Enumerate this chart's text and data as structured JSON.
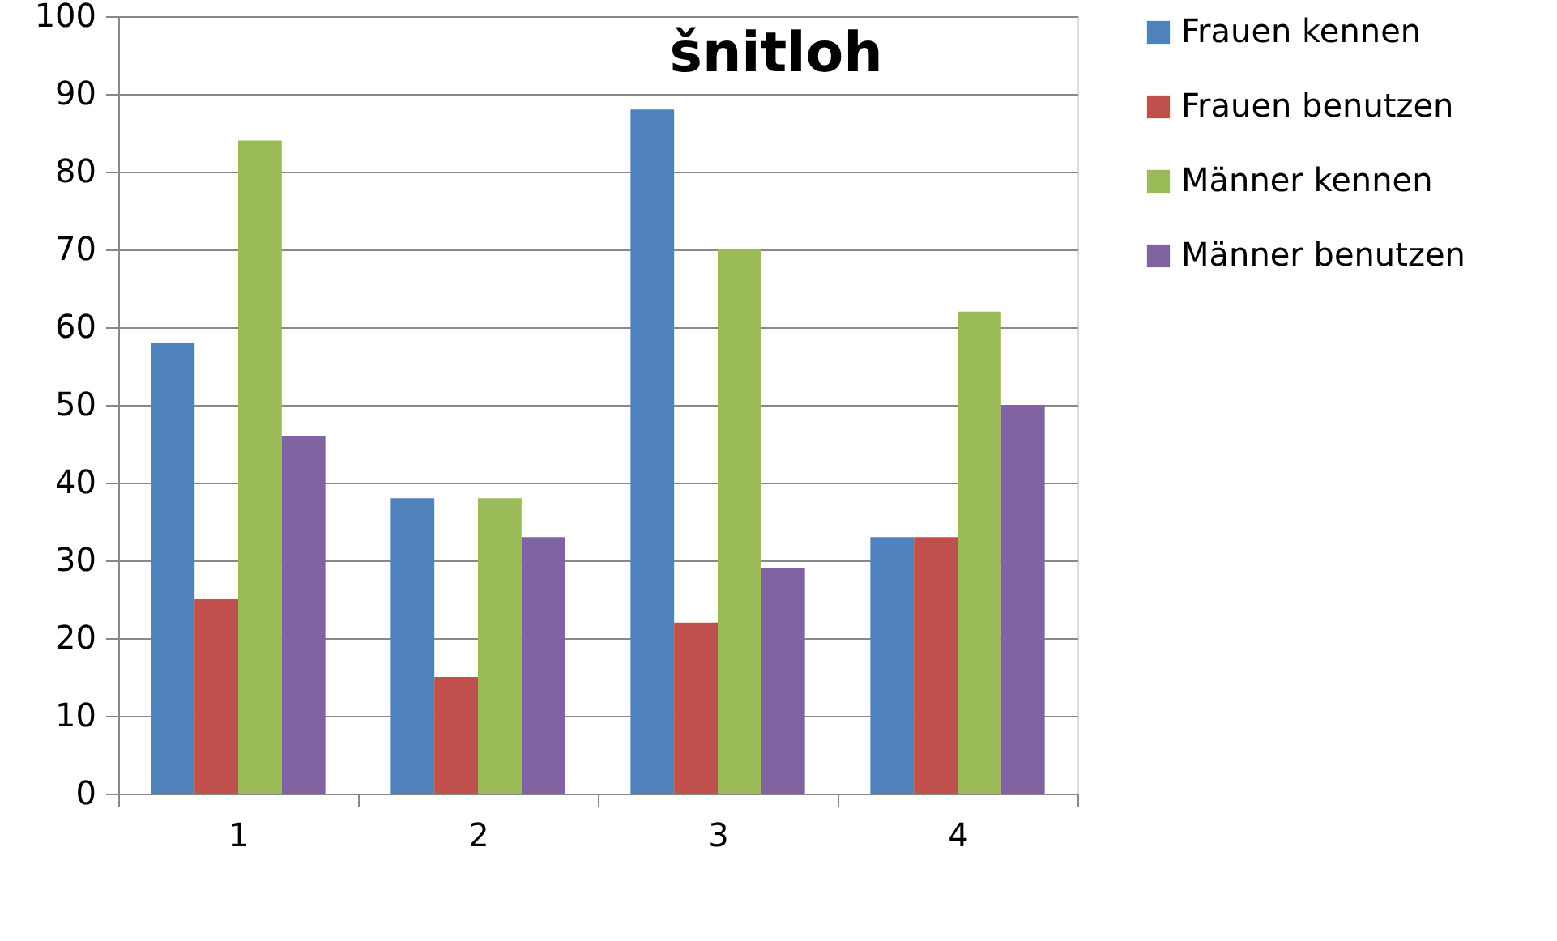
{
  "chart_data": {
    "type": "bar",
    "title": "šnitloh",
    "categories": [
      "1",
      "2",
      "3",
      "4"
    ],
    "series": [
      {
        "name": "Frauen kennen",
        "color": "#4f81bd",
        "values": [
          58,
          38,
          88,
          33
        ]
      },
      {
        "name": "Frauen benutzen",
        "color": "#c0504d",
        "values": [
          25,
          15,
          22,
          33
        ]
      },
      {
        "name": "Männer kennen",
        "color": "#9bbb59",
        "values": [
          84,
          38,
          70,
          62
        ]
      },
      {
        "name": "Männer benutzen",
        "color": "#8064a2",
        "values": [
          46,
          33,
          29,
          50
        ]
      }
    ],
    "ylim": [
      0,
      100
    ],
    "yticks": [
      0,
      10,
      20,
      30,
      40,
      50,
      60,
      70,
      80,
      90,
      100
    ],
    "grid": "y",
    "legend": "right"
  }
}
